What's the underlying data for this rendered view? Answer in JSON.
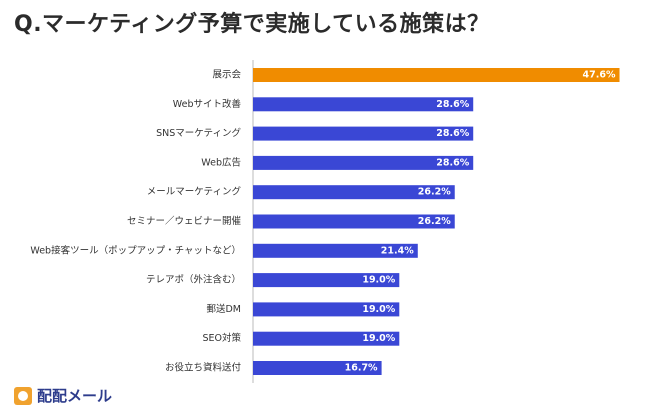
{
  "header": {
    "title": "Q.マーケティング予算で実施している施策は？"
  },
  "brand": {
    "logo_text": "配配メール",
    "logo_icon": "mail-logo-icon",
    "logo_color": "#2d3c8c",
    "mark_color": "#f0a22e"
  },
  "colors": {
    "highlight": "#f08c00",
    "bar": "#3a47d5"
  },
  "chart_data": {
    "type": "bar",
    "orientation": "horizontal",
    "title": "Q.マーケティング予算で実施している施策は？",
    "categories": [
      "展示会",
      "Webサイト改善",
      "SNSマーケティング",
      "Web広告",
      "メールマーケティング",
      "セミナー／ウェビナー開催",
      "Web接客ツール（ポップアップ・チャットなど）",
      "テレアポ（外注含む）",
      "郵送DM",
      "SEO対策",
      "お役立ち資料送付"
    ],
    "values": [
      47.6,
      28.6,
      28.6,
      28.6,
      26.2,
      26.2,
      21.4,
      19.0,
      19.0,
      19.0,
      16.7
    ],
    "value_labels": [
      "47.6%",
      "28.6%",
      "28.6%",
      "28.6%",
      "26.2%",
      "26.2%",
      "21.4%",
      "19.0%",
      "19.0%",
      "19.0%",
      "16.7%"
    ],
    "highlight_index": 0,
    "xlabel": "",
    "ylabel": "",
    "xlim": [
      0,
      50
    ],
    "grid": false,
    "legend": "none"
  }
}
